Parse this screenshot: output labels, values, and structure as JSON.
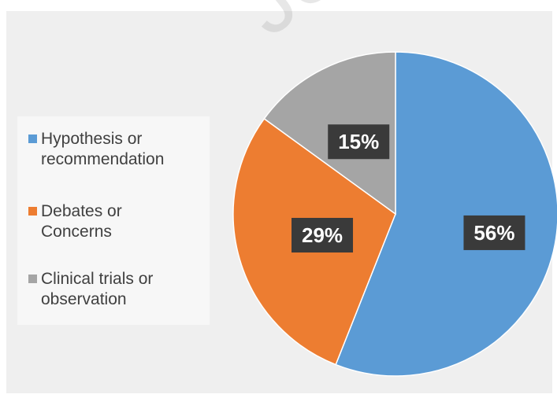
{
  "chart_data": {
    "type": "pie",
    "categories": [
      "Hypothesis or recommendation",
      "Debates or Concerns",
      "Clinical trials or observation"
    ],
    "values": [
      56,
      29,
      15
    ],
    "data_labels": [
      "56%",
      "29%",
      "15%"
    ],
    "colors": [
      "#5b9bd5",
      "#ed7d31",
      "#a5a5a5"
    ],
    "legend_placement": "left",
    "start_angle_deg": 0,
    "direction": "clockwise"
  },
  "legend": {
    "items": [
      {
        "label": "Hypothesis or recommendation",
        "color": "#5b9bd5"
      },
      {
        "label": "Debates or Concerns",
        "color": "#ed7d31"
      },
      {
        "label": "Clinical trials or observation",
        "color": "#a5a5a5"
      }
    ]
  },
  "watermark": "Journal"
}
